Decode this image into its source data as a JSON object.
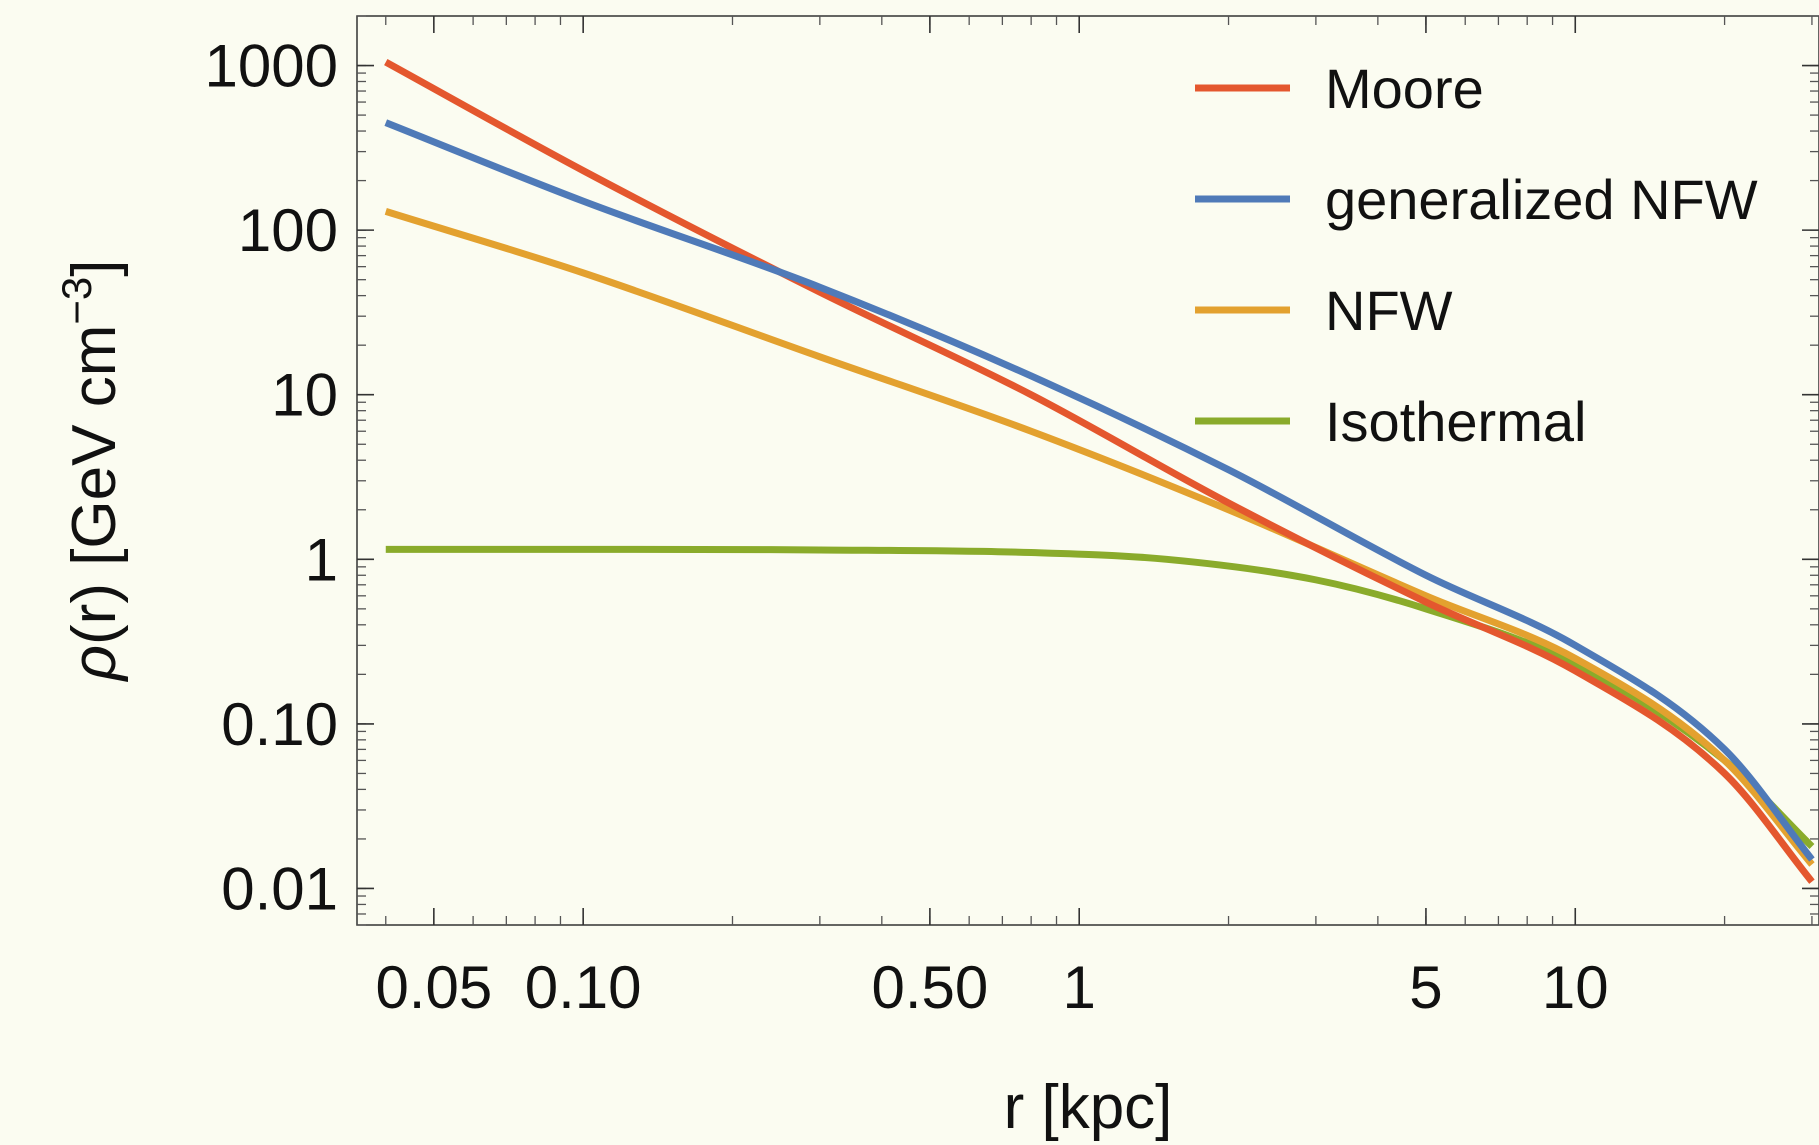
{
  "chart_data": {
    "type": "line",
    "xlabel": "r [kpc]",
    "ylabel": {
      "symbol": "ρ",
      "rest": "(r) [GeV cm",
      "sup": "−3",
      "close": "]"
    },
    "x_scale": "log",
    "y_scale": "log",
    "xlim": [
      0.035,
      31
    ],
    "ylim": [
      0.006,
      2000
    ],
    "grid": false,
    "legend_position": "top-right",
    "x_ticks": [
      {
        "value": 0.05,
        "label": "0.05"
      },
      {
        "value": 0.1,
        "label": "0.10"
      },
      {
        "value": 0.5,
        "label": "0.50"
      },
      {
        "value": 1,
        "label": "1"
      },
      {
        "value": 5,
        "label": "5"
      },
      {
        "value": 10,
        "label": "10"
      }
    ],
    "y_ticks": [
      {
        "value": 0.01,
        "label": "0.01"
      },
      {
        "value": 0.1,
        "label": "0.10"
      },
      {
        "value": 1,
        "label": "1"
      },
      {
        "value": 10,
        "label": "10"
      },
      {
        "value": 100,
        "label": "100"
      },
      {
        "value": 1000,
        "label": "1000"
      }
    ],
    "series": [
      {
        "name": "Moore",
        "color": "#e4572e",
        "x": [
          0.04,
          0.1,
          0.3,
          0.8,
          2,
          5,
          10,
          20,
          30
        ],
        "y": [
          1050,
          230,
          42,
          10,
          2.2,
          0.55,
          0.21,
          0.05,
          0.011
        ]
      },
      {
        "name": "generalized NFW",
        "color": "#4f7ab8",
        "x": [
          0.04,
          0.1,
          0.3,
          0.8,
          2,
          5,
          10,
          20,
          30
        ],
        "y": [
          450,
          150,
          45,
          13,
          3.5,
          0.8,
          0.3,
          0.07,
          0.015
        ]
      },
      {
        "name": "NFW",
        "color": "#e3a12f",
        "x": [
          0.04,
          0.1,
          0.3,
          0.8,
          2,
          5,
          10,
          20,
          30
        ],
        "y": [
          130,
          55,
          17,
          6,
          2,
          0.6,
          0.25,
          0.06,
          0.014
        ]
      },
      {
        "name": "Isothermal",
        "color": "#8aab2b",
        "x": [
          0.04,
          0.1,
          0.3,
          0.8,
          1.5,
          3,
          5,
          10,
          20,
          30
        ],
        "y": [
          1.15,
          1.15,
          1.14,
          1.1,
          1.0,
          0.75,
          0.5,
          0.23,
          0.06,
          0.018
        ]
      }
    ]
  }
}
